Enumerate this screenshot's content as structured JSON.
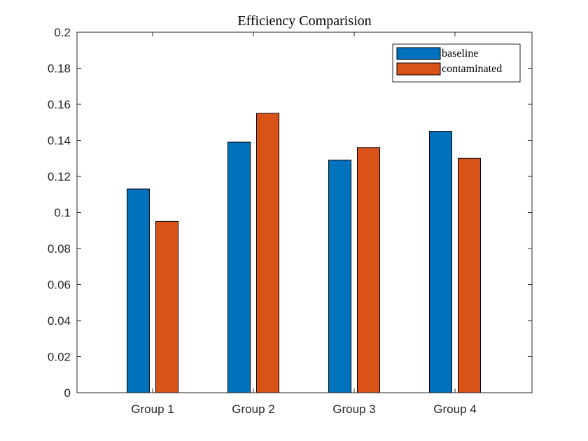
{
  "chart_data": {
    "type": "bar",
    "title": "Efficiency Comparision",
    "xlabel": "",
    "ylabel": "",
    "categories": [
      "Group 1",
      "Group 2",
      "Group 3",
      "Group 4"
    ],
    "series": [
      {
        "name": "baseline",
        "values": [
          0.113,
          0.139,
          0.129,
          0.145
        ],
        "color": "#0072BD"
      },
      {
        "name": "contaminated",
        "values": [
          0.095,
          0.155,
          0.136,
          0.13
        ],
        "color": "#D95319"
      }
    ],
    "ylim": [
      0,
      0.2
    ],
    "yticks": [
      0,
      0.02,
      0.04,
      0.06,
      0.08,
      0.1,
      0.12,
      0.14,
      0.16,
      0.18,
      0.2
    ],
    "ytick_labels": [
      "0",
      "0.02",
      "0.04",
      "0.06",
      "0.08",
      "0.1",
      "0.12",
      "0.14",
      "0.16",
      "0.18",
      "0.2"
    ],
    "grid": false,
    "legend_position": "top-right"
  }
}
